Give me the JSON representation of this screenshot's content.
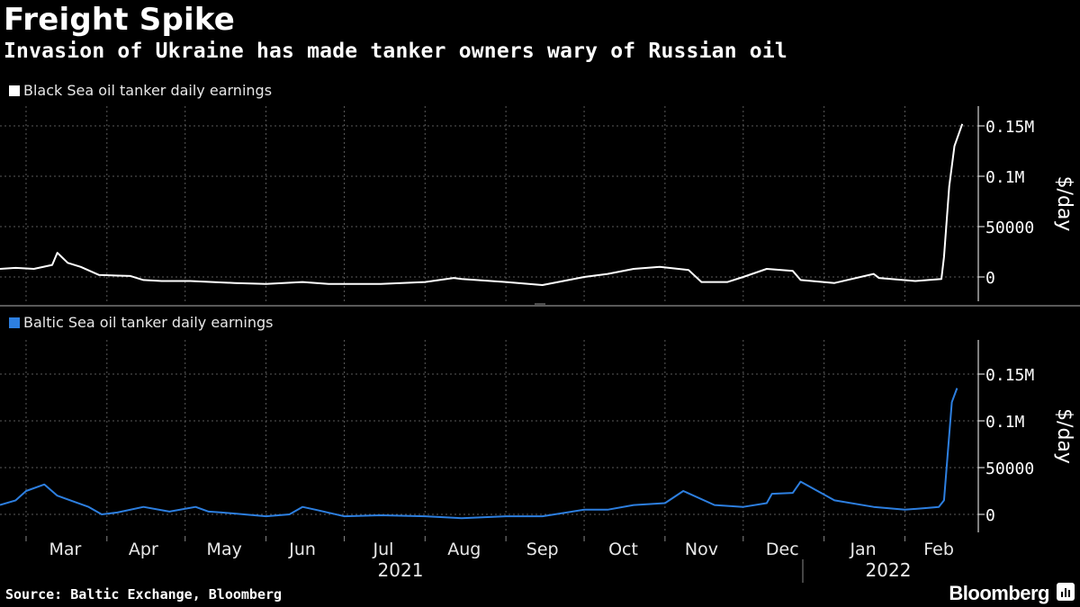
{
  "header": {
    "title": "Freight Spike",
    "subtitle": "Invasion of Ukraine has made tanker owners wary of Russian oil"
  },
  "footer": {
    "source": "Source: Baltic Exchange, Bloomberg",
    "brand": "Bloomberg"
  },
  "colors": {
    "background": "#000000",
    "black_sea": "#ffffff",
    "baltic_sea": "#2d7fe0",
    "grid": "#5a5a5a"
  },
  "chart_data": [
    {
      "type": "line",
      "legend": "Black Sea oil tanker daily earnings",
      "ylabel": "$/day",
      "ylim": [
        -20000,
        165000
      ],
      "yticks": [
        0,
        50000,
        100000,
        150000
      ],
      "ytick_labels": [
        "0",
        "50000",
        "0.1M",
        "0.15M"
      ],
      "grid": true,
      "series": [
        {
          "name": "Black Sea oil tanker daily earnings",
          "x": [
            "2021-02-19",
            "2021-02-25",
            "2021-03-04",
            "2021-03-11",
            "2021-03-13",
            "2021-03-17",
            "2021-03-22",
            "2021-03-29",
            "2021-04-10",
            "2021-04-15",
            "2021-04-22",
            "2021-05-03",
            "2021-05-20",
            "2021-06-01",
            "2021-06-15",
            "2021-06-25",
            "2021-07-01",
            "2021-07-15",
            "2021-08-01",
            "2021-08-12",
            "2021-08-15",
            "2021-09-01",
            "2021-09-15",
            "2021-09-25",
            "2021-10-01",
            "2021-10-10",
            "2021-10-20",
            "2021-10-30",
            "2021-11-10",
            "2021-11-15",
            "2021-11-25",
            "2021-12-01",
            "2021-12-10",
            "2021-12-20",
            "2021-12-23",
            "2022-01-05",
            "2022-01-20",
            "2022-01-22",
            "2022-02-05",
            "2022-02-15",
            "2022-02-16",
            "2022-02-18",
            "2022-02-20",
            "2022-02-23"
          ],
          "values": [
            8000,
            9000,
            8000,
            12000,
            24000,
            14000,
            10000,
            2000,
            1000,
            -3000,
            -4000,
            -4000,
            -6000,
            -7000,
            -5000,
            -7000,
            -7000,
            -7000,
            -5000,
            -1000,
            -2000,
            -5000,
            -8000,
            -3000,
            0,
            3000,
            8000,
            10000,
            7000,
            -5000,
            -5000,
            0,
            8000,
            6000,
            -3000,
            -6000,
            3000,
            -1000,
            -4000,
            -2000,
            20000,
            90000,
            130000,
            152000
          ]
        }
      ]
    },
    {
      "type": "line",
      "legend": "Baltic Sea oil tanker daily earnings",
      "ylabel": "$/day",
      "ylim": [
        -20000,
        190000
      ],
      "yticks": [
        0,
        50000,
        100000,
        150000
      ],
      "ytick_labels": [
        "0",
        "50000",
        "0.1M",
        "0.15M"
      ],
      "grid": true,
      "series": [
        {
          "name": "Baltic Sea oil tanker daily earnings",
          "x": [
            "2021-02-19",
            "2021-02-25",
            "2021-03-01",
            "2021-03-08",
            "2021-03-13",
            "2021-03-18",
            "2021-03-25",
            "2021-03-30",
            "2021-04-05",
            "2021-04-15",
            "2021-04-25",
            "2021-05-05",
            "2021-05-10",
            "2021-05-15",
            "2021-06-01",
            "2021-06-10",
            "2021-06-15",
            "2021-06-20",
            "2021-07-01",
            "2021-07-15",
            "2021-08-01",
            "2021-08-15",
            "2021-09-01",
            "2021-09-15",
            "2021-10-01",
            "2021-10-10",
            "2021-10-20",
            "2021-11-01",
            "2021-11-08",
            "2021-11-20",
            "2021-12-01",
            "2021-12-10",
            "2021-12-12",
            "2021-12-20",
            "2021-12-23",
            "2022-01-05",
            "2022-01-20",
            "2022-02-01",
            "2022-02-10",
            "2022-02-14",
            "2022-02-16",
            "2022-02-19",
            "2022-02-21"
          ],
          "values": [
            10000,
            15000,
            25000,
            32000,
            20000,
            15000,
            8000,
            0,
            2000,
            8000,
            3000,
            8000,
            3000,
            2000,
            -2000,
            0,
            8000,
            5000,
            -2000,
            -1000,
            -2000,
            -4000,
            -2000,
            -2000,
            5000,
            5000,
            10000,
            12000,
            25000,
            10000,
            8000,
            12000,
            22000,
            23000,
            35000,
            15000,
            8000,
            5000,
            7000,
            8000,
            15000,
            120000,
            135000
          ]
        }
      ]
    }
  ],
  "x_axis": {
    "months": [
      "Mar",
      "Apr",
      "May",
      "Jun",
      "Jul",
      "Aug",
      "Sep",
      "Oct",
      "Nov",
      "Dec",
      "Jan",
      "Feb"
    ],
    "years": [
      "2021",
      "2022"
    ]
  }
}
